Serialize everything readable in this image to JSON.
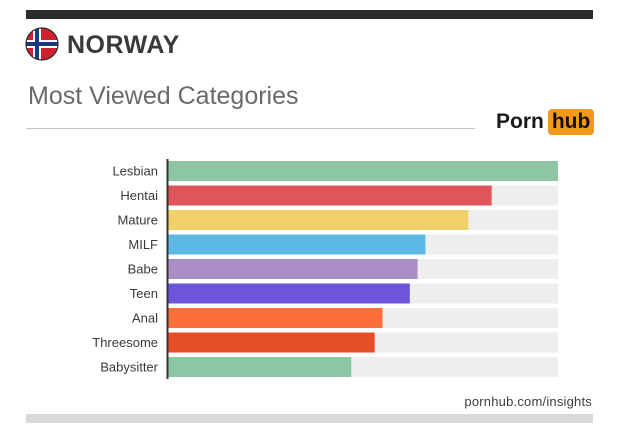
{
  "header": {
    "country": "NORWAY",
    "subtitle": "Most Viewed Categories",
    "flag_icon": "norway-flag-icon"
  },
  "logo": {
    "part1": "Porn",
    "part2": "hub",
    "accent": "#f7971d"
  },
  "footer": {
    "source": "pornhub.com/insights"
  },
  "chart_data": {
    "type": "bar",
    "orientation": "horizontal",
    "title": "",
    "xlabel": "",
    "ylabel": "",
    "xlim": [
      0,
      100
    ],
    "grid": false,
    "legend": "none",
    "categories": [
      "Lesbian",
      "Hentai",
      "Mature",
      "MILF",
      "Babe",
      "Teen",
      "Anal",
      "Threesome",
      "Babysitter"
    ],
    "values": [
      100,
      83,
      77,
      66,
      64,
      62,
      55,
      53,
      47
    ],
    "colors": [
      "#8ec6a4",
      "#e0555a",
      "#f1d06a",
      "#5db8e4",
      "#a98fc6",
      "#6e54d8",
      "#fd6f3a",
      "#e54e27",
      "#8ec6a4"
    ],
    "track_color": "#eeeeee"
  }
}
